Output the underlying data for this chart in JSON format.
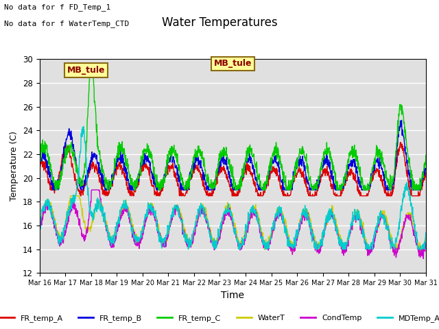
{
  "title": "Water Temperatures",
  "xlabel": "Time",
  "ylabel": "Temperature (C)",
  "ylim": [
    12,
    30
  ],
  "xlim": [
    0,
    15
  ],
  "xtick_labels": [
    "Mar 16",
    "Mar 17",
    "Mar 18",
    "Mar 19",
    "Mar 20",
    "Mar 21",
    "Mar 22",
    "Mar 23",
    "Mar 24",
    "Mar 25",
    "Mar 26",
    "Mar 27",
    "Mar 28",
    "Mar 29",
    "Mar 30",
    "Mar 31"
  ],
  "annotation1": "No data for f FD_Temp_1",
  "annotation2": "No data for f WaterTemp_CTD",
  "mb_label": "MB_tule",
  "bg_color": "#e0e0e0",
  "series": {
    "FR_temp_A": {
      "color": "#dd0000",
      "label": "FR_temp_A"
    },
    "FR_temp_B": {
      "color": "#0000dd",
      "label": "FR_temp_B"
    },
    "FR_temp_C": {
      "color": "#00cc00",
      "label": "FR_temp_C"
    },
    "WaterT": {
      "color": "#cccc00",
      "label": "WaterT"
    },
    "CondTemp": {
      "color": "#cc00cc",
      "label": "CondTemp"
    },
    "MDTemp_A": {
      "color": "#00cccc",
      "label": "MDTemp_A"
    }
  }
}
